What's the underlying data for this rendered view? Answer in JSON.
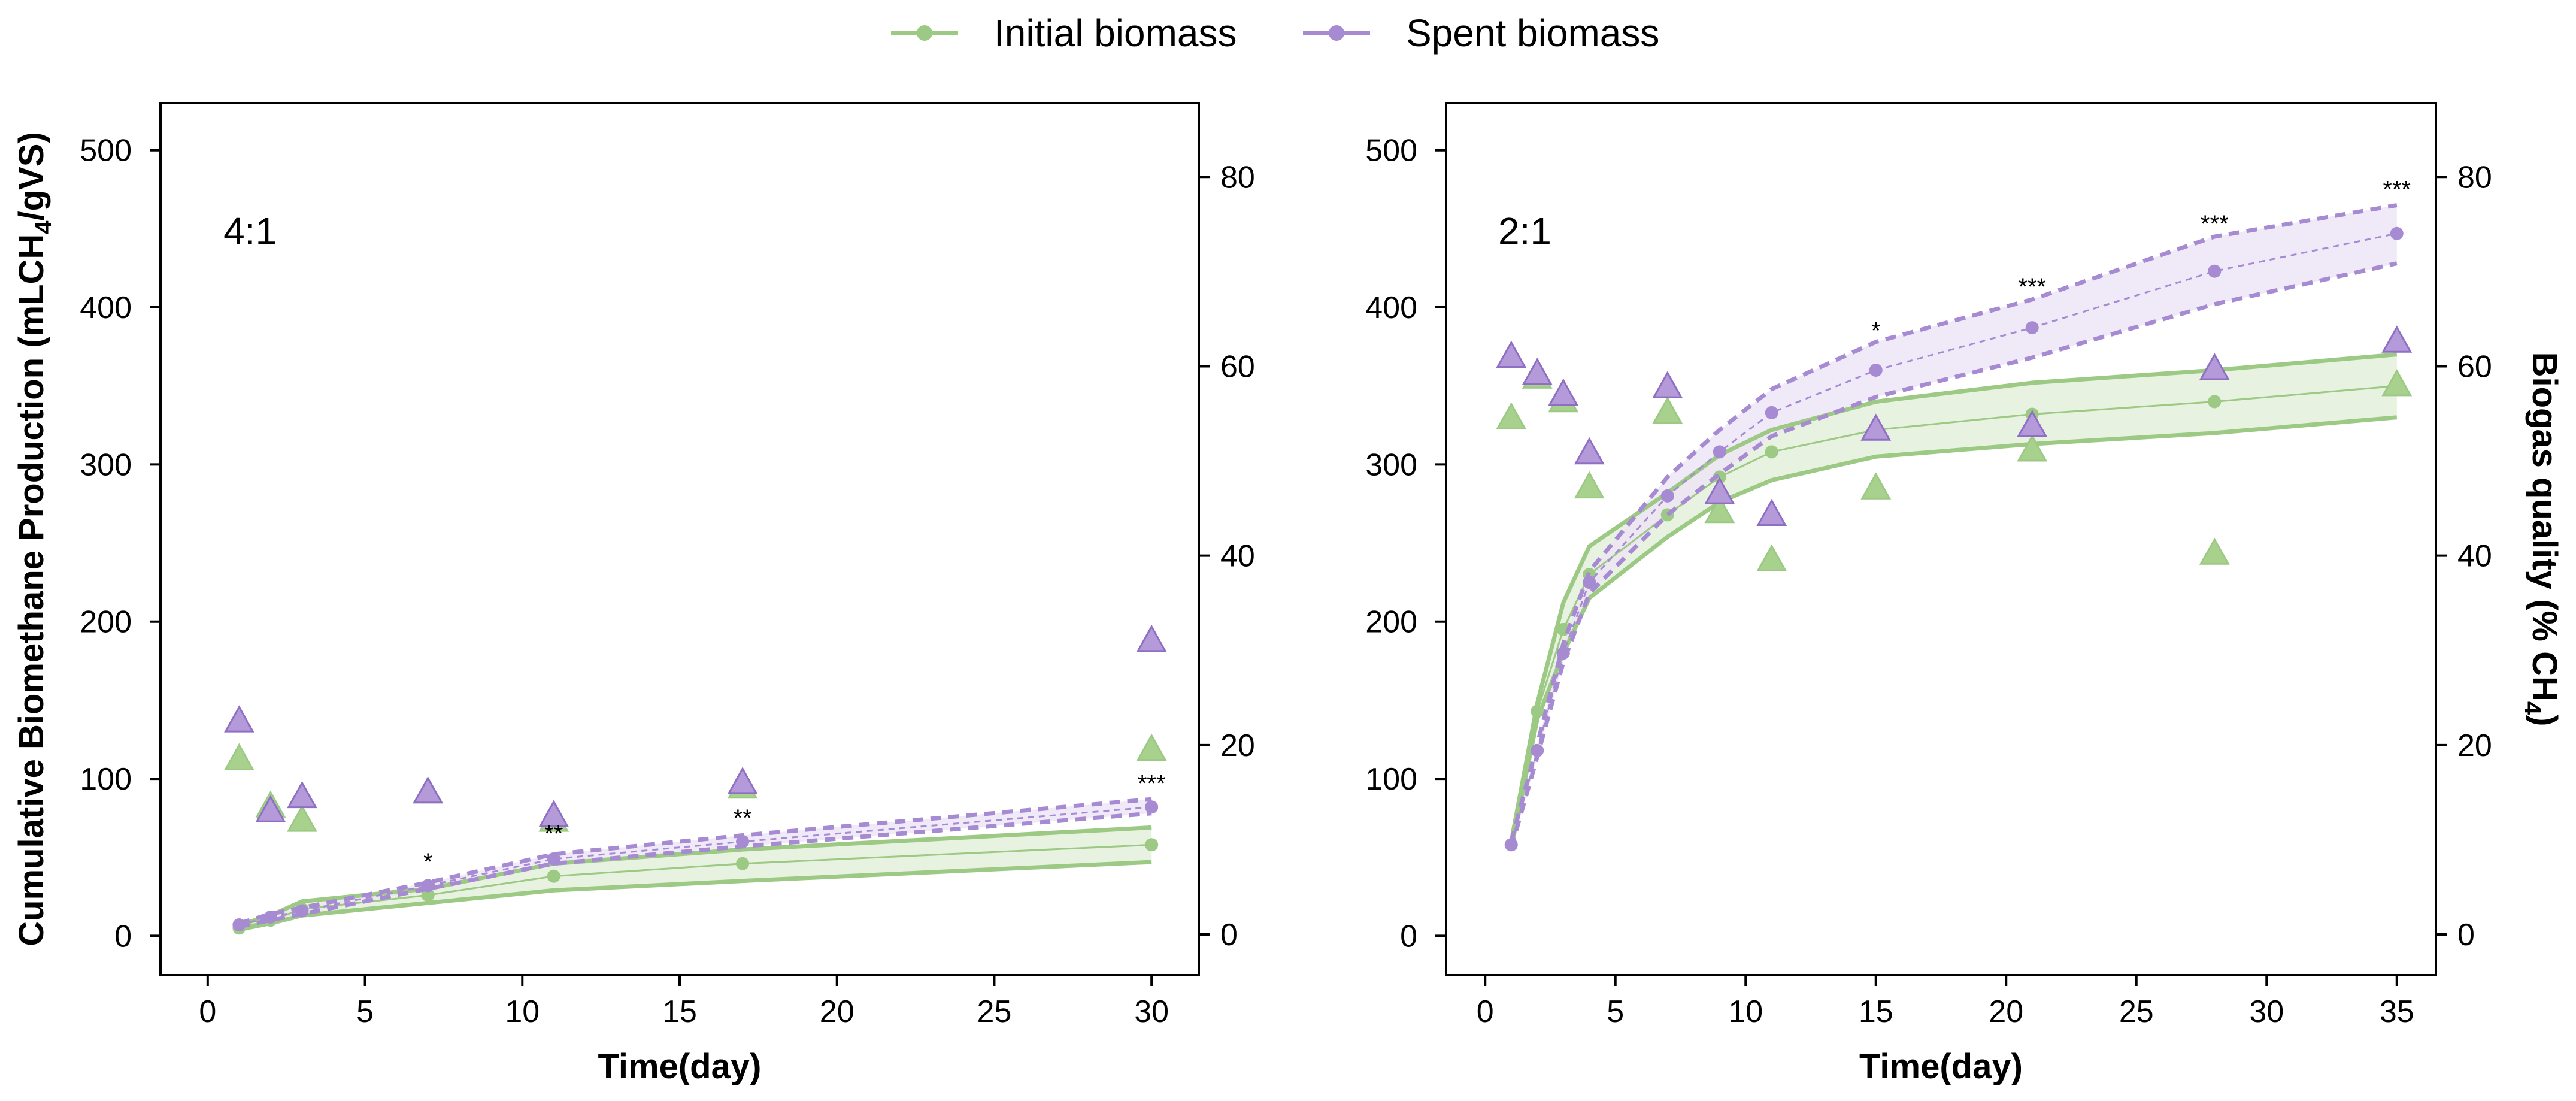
{
  "colors": {
    "initial_line": "#9cc983",
    "initial_fill": "#e2efd8",
    "initial_marker": "#a9d18e",
    "spent_line": "#a68bd3",
    "spent_fill": "#ece4f5",
    "spent_marker": "#b49ad9",
    "spent_marker_edge": "#8e6fc4"
  },
  "legend": {
    "items": [
      {
        "label": "Initial biomass",
        "color": "#9cc983"
      },
      {
        "label": "Spent biomass",
        "color": "#a68bd3"
      }
    ],
    "placement": "top-center"
  },
  "chart_data": [
    {
      "type": "line",
      "panel_label": "4:1",
      "xlabel": "Time(day)",
      "ylabel_left": "Cumulative Biomethane Production (mLCH",
      "ylabel_left_sub": "4",
      "ylabel_left_end": "/gVS)",
      "ylabel_right": "",
      "xlim": [
        -1.5,
        31.5
      ],
      "ylim_left": [
        -25,
        530
      ],
      "ylim_right": [
        -4.3,
        87.8
      ],
      "xticks": [
        0,
        5,
        10,
        15,
        20,
        25,
        30
      ],
      "yticks_left": [
        0,
        100,
        200,
        300,
        400,
        500
      ],
      "yticks_right": [
        0,
        20,
        40,
        60,
        80
      ],
      "series": [
        {
          "name": "Initial biomass",
          "x": [
            1,
            2,
            3,
            7,
            11,
            17,
            30
          ],
          "y": [
            5,
            10,
            17,
            26,
            38,
            46,
            58
          ],
          "upper": [
            7,
            13,
            22,
            30,
            46,
            55,
            69
          ],
          "lower": [
            4,
            8,
            13,
            21,
            29,
            35,
            47
          ],
          "quality_x": [
            1,
            2,
            3,
            7,
            11,
            17,
            30
          ],
          "quality_y": [
            18.5,
            13.5,
            12,
            15,
            12,
            15.5,
            19.5
          ]
        },
        {
          "name": "Spent biomass",
          "x": [
            1,
            2,
            3,
            7,
            11,
            17,
            30
          ],
          "y": [
            7,
            12,
            16,
            32,
            49,
            60,
            82
          ],
          "upper": [
            8,
            14,
            18,
            34,
            52,
            64,
            87
          ],
          "lower": [
            6,
            10,
            14,
            30,
            46,
            57,
            78
          ],
          "quality_x": [
            1,
            2,
            3,
            7,
            11,
            17,
            30
          ],
          "quality_y": [
            22.5,
            13,
            14.5,
            15,
            12.5,
            16,
            31
          ]
        }
      ],
      "annotations": [
        {
          "x": 7,
          "y": 42,
          "text": "*"
        },
        {
          "x": 11,
          "y": 60,
          "text": "**"
        },
        {
          "x": 17,
          "y": 70,
          "text": "**"
        },
        {
          "x": 30,
          "y": 92,
          "text": "***"
        }
      ]
    },
    {
      "type": "line",
      "panel_label": "2:1",
      "xlabel": "Time(day)",
      "ylabel_left": "",
      "ylabel_right": "Biogas quality (% CH",
      "ylabel_right_sub": "4",
      "ylabel_right_end": ")",
      "xlim": [
        -1.5,
        36.5
      ],
      "ylim_left": [
        -25,
        530
      ],
      "ylim_right": [
        -4.3,
        87.8
      ],
      "xticks": [
        0,
        5,
        10,
        15,
        20,
        25,
        30,
        35
      ],
      "yticks_left": [
        0,
        100,
        200,
        300,
        400,
        500
      ],
      "yticks_right": [
        0,
        20,
        40,
        60,
        80
      ],
      "series": [
        {
          "name": "Initial biomass",
          "x": [
            1,
            2,
            3,
            4,
            7,
            9,
            11,
            15,
            21,
            28,
            35
          ],
          "y": [
            58,
            143,
            195,
            230,
            268,
            292,
            308,
            322,
            332,
            340,
            350
          ],
          "upper": [
            60,
            148,
            212,
            248,
            282,
            306,
            322,
            340,
            352,
            360,
            370
          ],
          "lower": [
            56,
            138,
            180,
            215,
            254,
            276,
            290,
            305,
            313,
            320,
            330
          ],
          "quality_x": [
            1,
            2,
            3,
            4,
            7,
            9,
            11,
            15,
            21,
            28,
            35
          ],
          "quality_y": [
            54.5,
            58.8,
            56.3,
            47.2,
            55.1,
            44.6,
            39.5,
            47.1,
            51.1,
            40.2,
            58
          ]
        },
        {
          "name": "Spent biomass",
          "x": [
            1,
            2,
            3,
            4,
            7,
            9,
            11,
            15,
            21,
            28,
            35
          ],
          "y": [
            58,
            118,
            180,
            225,
            280,
            308,
            333,
            360,
            387,
            423,
            447
          ],
          "upper": [
            60,
            122,
            186,
            232,
            292,
            322,
            348,
            378,
            405,
            445,
            465
          ],
          "lower": [
            56,
            114,
            174,
            218,
            268,
            294,
            318,
            343,
            368,
            402,
            428
          ],
          "quality_x": [
            1,
            2,
            3,
            4,
            7,
            9,
            11,
            15,
            21,
            28,
            35
          ],
          "quality_y": [
            61,
            59.2,
            57,
            50.8,
            57.8,
            46.6,
            44.3,
            53.3,
            53.7,
            59.7,
            62.6
          ]
        }
      ],
      "annotations": [
        {
          "x": 15,
          "y": 380,
          "text": "*"
        },
        {
          "x": 21,
          "y": 408,
          "text": "***"
        },
        {
          "x": 28,
          "y": 448,
          "text": "***"
        },
        {
          "x": 35,
          "y": 470,
          "text": "***"
        }
      ]
    }
  ]
}
